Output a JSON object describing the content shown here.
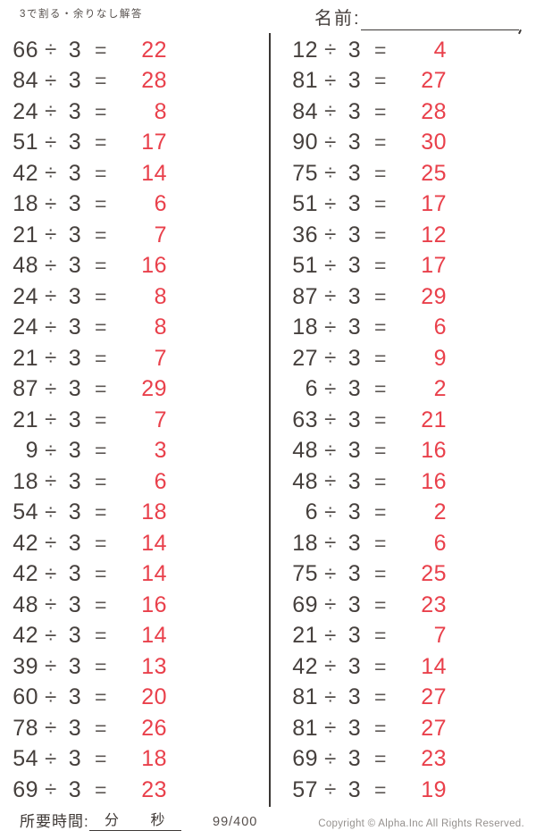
{
  "header": {
    "worksheet_title": "3で割る・余りなし解答",
    "name_label": "名前:"
  },
  "problems": {
    "divisor": "3",
    "operator_symbol": "÷",
    "equals_symbol": "=",
    "left": [
      {
        "dividend": "66",
        "answer": "22"
      },
      {
        "dividend": "84",
        "answer": "28"
      },
      {
        "dividend": "24",
        "answer": "8"
      },
      {
        "dividend": "51",
        "answer": "17"
      },
      {
        "dividend": "42",
        "answer": "14"
      },
      {
        "dividend": "18",
        "answer": "6"
      },
      {
        "dividend": "21",
        "answer": "7"
      },
      {
        "dividend": "48",
        "answer": "16"
      },
      {
        "dividend": "24",
        "answer": "8"
      },
      {
        "dividend": "24",
        "answer": "8"
      },
      {
        "dividend": "21",
        "answer": "7"
      },
      {
        "dividend": "87",
        "answer": "29"
      },
      {
        "dividend": "21",
        "answer": "7"
      },
      {
        "dividend": "9",
        "answer": "3"
      },
      {
        "dividend": "18",
        "answer": "6"
      },
      {
        "dividend": "54",
        "answer": "18"
      },
      {
        "dividend": "42",
        "answer": "14"
      },
      {
        "dividend": "42",
        "answer": "14"
      },
      {
        "dividend": "48",
        "answer": "16"
      },
      {
        "dividend": "42",
        "answer": "14"
      },
      {
        "dividend": "39",
        "answer": "13"
      },
      {
        "dividend": "60",
        "answer": "20"
      },
      {
        "dividend": "78",
        "answer": "26"
      },
      {
        "dividend": "54",
        "answer": "18"
      },
      {
        "dividend": "69",
        "answer": "23"
      }
    ],
    "right": [
      {
        "dividend": "12",
        "answer": "4"
      },
      {
        "dividend": "81",
        "answer": "27"
      },
      {
        "dividend": "84",
        "answer": "28"
      },
      {
        "dividend": "90",
        "answer": "30"
      },
      {
        "dividend": "75",
        "answer": "25"
      },
      {
        "dividend": "51",
        "answer": "17"
      },
      {
        "dividend": "36",
        "answer": "12"
      },
      {
        "dividend": "51",
        "answer": "17"
      },
      {
        "dividend": "87",
        "answer": "29"
      },
      {
        "dividend": "18",
        "answer": "6"
      },
      {
        "dividend": "27",
        "answer": "9"
      },
      {
        "dividend": "6",
        "answer": "2"
      },
      {
        "dividend": "63",
        "answer": "21"
      },
      {
        "dividend": "48",
        "answer": "16"
      },
      {
        "dividend": "48",
        "answer": "16"
      },
      {
        "dividend": "6",
        "answer": "2"
      },
      {
        "dividend": "18",
        "answer": "6"
      },
      {
        "dividend": "75",
        "answer": "25"
      },
      {
        "dividend": "69",
        "answer": "23"
      },
      {
        "dividend": "21",
        "answer": "7"
      },
      {
        "dividend": "42",
        "answer": "14"
      },
      {
        "dividend": "81",
        "answer": "27"
      },
      {
        "dividend": "81",
        "answer": "27"
      },
      {
        "dividend": "69",
        "answer": "23"
      },
      {
        "dividend": "57",
        "answer": "19"
      }
    ]
  },
  "footer": {
    "time_label": "所要時間:",
    "minutes_label": "分",
    "seconds_label": "秒",
    "page_number": "99/400",
    "copyright": "Copyright ©  Alpha.Inc All Rights Reserved."
  },
  "colors": {
    "ink": "#46403d",
    "answer_red": "#e9404b",
    "muted_gray": "#94908d"
  }
}
